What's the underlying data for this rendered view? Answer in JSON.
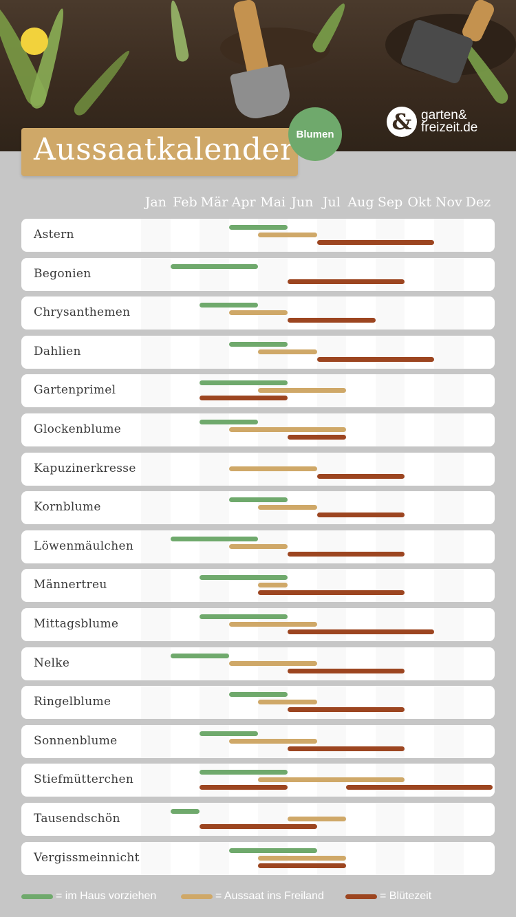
{
  "header": {
    "title": "Aussaatkalender",
    "category": "Blumen",
    "brand": {
      "line1": "garten&",
      "line2": "freizeit.de"
    }
  },
  "colors": {
    "indoor": "#6fa96c",
    "outdoor": "#cfa868",
    "bloom": "#9c4520",
    "title_box": "#cfa868",
    "background": "#c6c6c6"
  },
  "legend": [
    {
      "key": "indoor",
      "label": "= im Haus vorziehen"
    },
    {
      "key": "outdoor",
      "label": "= Aussaat ins Freiland"
    },
    {
      "key": "bloom",
      "label": "= Blütezeit"
    }
  ],
  "chart_data": {
    "type": "bar",
    "categories": [
      "Jan",
      "Feb",
      "Mär",
      "Apr",
      "Mai",
      "Jun",
      "Jul",
      "Aug",
      "Sep",
      "Okt",
      "Nov",
      "Dez"
    ],
    "series_keys": [
      "indoor",
      "outdoor",
      "bloom"
    ],
    "plants": [
      {
        "name": "Astern",
        "indoor": [
          4,
          5
        ],
        "outdoor": [
          5,
          6
        ],
        "bloom": [
          7,
          10
        ]
      },
      {
        "name": "Begonien",
        "indoor": [
          2,
          4
        ],
        "outdoor": null,
        "bloom": [
          6,
          9
        ]
      },
      {
        "name": "Chrysanthemen",
        "indoor": [
          3,
          4
        ],
        "outdoor": [
          4,
          5
        ],
        "bloom": [
          6,
          8
        ]
      },
      {
        "name": "Dahlien",
        "indoor": [
          4,
          5
        ],
        "outdoor": [
          5,
          6
        ],
        "bloom": [
          7,
          10
        ]
      },
      {
        "name": "Gartenprimel",
        "indoor": [
          3,
          5
        ],
        "outdoor": [
          5,
          7
        ],
        "bloom": [
          3,
          5
        ]
      },
      {
        "name": "Glockenblume",
        "indoor": [
          3,
          4
        ],
        "outdoor": [
          4,
          7
        ],
        "bloom": [
          6,
          7
        ]
      },
      {
        "name": "Kapuzinerkresse",
        "indoor": null,
        "outdoor": [
          4,
          6
        ],
        "bloom": [
          7,
          9
        ]
      },
      {
        "name": "Kornblume",
        "indoor": [
          4,
          5
        ],
        "outdoor": [
          5,
          6
        ],
        "bloom": [
          7,
          9
        ]
      },
      {
        "name": "Löwenmäulchen",
        "indoor": [
          2,
          4
        ],
        "outdoor": [
          4,
          5
        ],
        "bloom": [
          6,
          9
        ]
      },
      {
        "name": "Männertreu",
        "indoor": [
          3,
          5
        ],
        "outdoor": [
          5,
          5
        ],
        "bloom": [
          5,
          9
        ]
      },
      {
        "name": "Mittagsblume",
        "indoor": [
          3,
          5
        ],
        "outdoor": [
          4,
          6
        ],
        "bloom": [
          6,
          10
        ]
      },
      {
        "name": "Nelke",
        "indoor": [
          2,
          3
        ],
        "outdoor": [
          4,
          6
        ],
        "bloom": [
          6,
          9
        ]
      },
      {
        "name": "Ringelblume",
        "indoor": [
          4,
          5
        ],
        "outdoor": [
          5,
          6
        ],
        "bloom": [
          6,
          9
        ]
      },
      {
        "name": "Sonnenblume",
        "indoor": [
          3,
          4
        ],
        "outdoor": [
          4,
          6
        ],
        "bloom": [
          6,
          9
        ]
      },
      {
        "name": "Stiefmütterchen",
        "indoor": [
          3,
          5
        ],
        "outdoor": [
          5,
          9
        ],
        "bloom": [
          3,
          5
        ],
        "bloom2": [
          8,
          12
        ]
      },
      {
        "name": "Tausendschön",
        "indoor": [
          2,
          2
        ],
        "outdoor": [
          6,
          7
        ],
        "bloom": [
          3,
          6
        ]
      },
      {
        "name": "Vergissmeinnicht",
        "indoor": [
          4,
          6
        ],
        "outdoor": [
          5,
          7
        ],
        "bloom": [
          5,
          7
        ]
      }
    ]
  }
}
